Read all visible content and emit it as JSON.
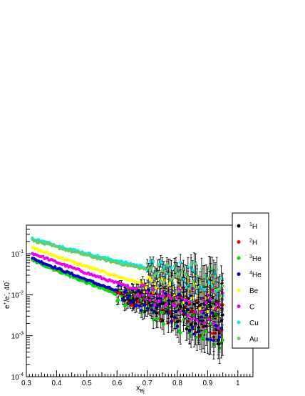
{
  "chart_data": {
    "type": "scatter",
    "xlabel_main": "x",
    "xlabel_sub": "Bj",
    "ylabel_main": "e",
    "ylabel_sup": "+",
    "ylabel_rest": "/e",
    "ylabel_sup2": "-",
    "ylabel_tail": ", 40",
    "ylabel_deg": "°",
    "x_ticks": [
      "0.3",
      "0.4",
      "0.5",
      "0.6",
      "0.7",
      "0.8",
      "0.9",
      "1"
    ],
    "y_ticks": [
      {
        "base": "10",
        "exp": "-4",
        "value": 0.0001
      },
      {
        "base": "10",
        "exp": "-3",
        "value": 0.001
      },
      {
        "base": "10",
        "exp": "-2",
        "value": 0.01
      },
      {
        "base": "10",
        "exp": "-1",
        "value": 0.1
      }
    ],
    "xlim": [
      0.3,
      1.05
    ],
    "ylim": [
      0.0001,
      0.5
    ],
    "log_y": true,
    "legend_position": "right",
    "series": [
      {
        "name": "1H",
        "sup": "1",
        "label": "H",
        "color": "#000000",
        "a": 0.07,
        "b": 6.8,
        "floor": 0.0012,
        "err_from": 0.62
      },
      {
        "name": "2H",
        "sup": "2",
        "label": "H",
        "color": "#ff0000",
        "a": 0.07,
        "b": 6.8,
        "floor": 0.0012,
        "err_from": 0.62
      },
      {
        "name": "3He",
        "sup": "3",
        "label": "He",
        "color": "#00dd00",
        "a": 0.068,
        "b": 7.2,
        "floor": 0.0011,
        "err_from": 0.6
      },
      {
        "name": "4He",
        "sup": "4",
        "label": "He",
        "color": "#0000cc",
        "a": 0.075,
        "b": 6.9,
        "floor": 0.0015,
        "err_from": 0.6
      },
      {
        "name": "Be",
        "sup": "",
        "label": "Be",
        "color": "#ffff00",
        "a": 0.135,
        "b": 6.2,
        "floor": 0.0045,
        "err_from": 0.68
      },
      {
        "name": "C",
        "sup": "",
        "label": "C",
        "color": "#ee00ee",
        "a": 0.1,
        "b": 6.5,
        "floor": 0.003,
        "err_from": 0.65
      },
      {
        "name": "Cu",
        "sup": "",
        "label": "Cu",
        "color": "#00eeee",
        "a": 0.22,
        "b": 5.2,
        "floor": 0.016,
        "err_from": 0.7
      },
      {
        "name": "Au",
        "sup": "",
        "label": "Au",
        "color": "#66cc66",
        "a": 0.2,
        "b": 5.3,
        "floor": 0.015,
        "err_from": 0.7
      }
    ]
  }
}
